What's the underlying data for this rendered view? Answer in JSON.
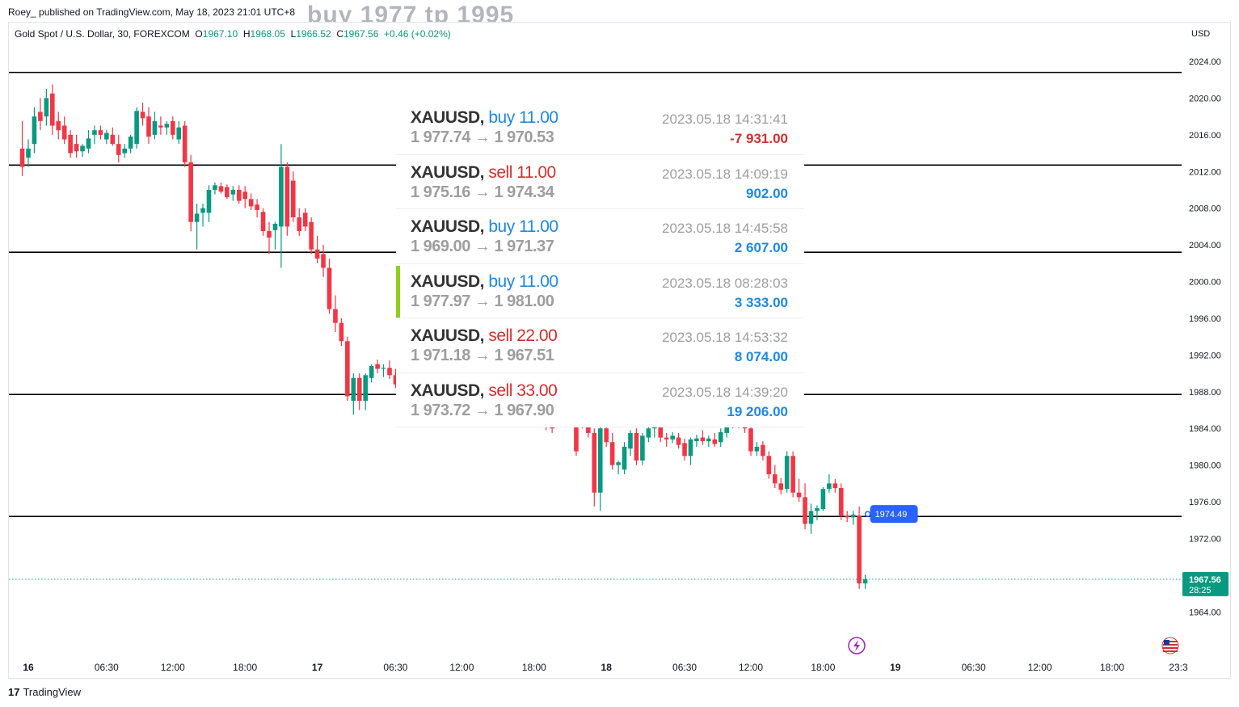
{
  "header": {
    "published": "Roey_  published on TradingView.com, May 18, 2023 21:01 UTC+8",
    "ghost_text": "buy 1977   tp 1995"
  },
  "legend": {
    "symbol": "Gold Spot / U.S. Dollar, 30, FOREXCOM",
    "o_label": "O",
    "o": "1967.10",
    "h_label": "H",
    "h": "1968.05",
    "l_label": "L",
    "l": "1966.52",
    "c_label": "C",
    "c": "1967.56",
    "change": "+0.46 (+0.02%)"
  },
  "footer": {
    "brand": "TradingView",
    "brand_mark": "17"
  },
  "trades": [
    {
      "symbol": "XAUUSD,",
      "side": "buy",
      "lots": "11.00",
      "open": "1 977.74",
      "close": "1 970.53",
      "time": "2023.05.18 14:31:41",
      "pnl": "-7 931.00",
      "highlight": false
    },
    {
      "symbol": "XAUUSD,",
      "side": "sell",
      "lots": "11.00",
      "open": "1 975.16",
      "close": "1 974.34",
      "time": "2023.05.18 14:09:19",
      "pnl": "902.00",
      "highlight": false
    },
    {
      "symbol": "XAUUSD,",
      "side": "buy",
      "lots": "11.00",
      "open": "1 969.00",
      "close": "1 971.37",
      "time": "2023.05.18 14:45:58",
      "pnl": "2 607.00",
      "highlight": false
    },
    {
      "symbol": "XAUUSD,",
      "side": "buy",
      "lots": "11.00",
      "open": "1 977.97",
      "close": "1 981.00",
      "time": "2023.05.18 08:28:03",
      "pnl": "3 333.00",
      "highlight": true
    },
    {
      "symbol": "XAUUSD,",
      "side": "sell",
      "lots": "22.00",
      "open": "1 971.18",
      "close": "1 967.51",
      "time": "2023.05.18 14:53:32",
      "pnl": "8 074.00",
      "highlight": false
    },
    {
      "symbol": "XAUUSD,",
      "side": "sell",
      "lots": "33.00",
      "open": "1 973.72",
      "close": "1 967.90",
      "time": "2023.05.18 14:39:20",
      "pnl": "19 206.00",
      "highlight": false
    }
  ],
  "chart_data": {
    "type": "candlestick",
    "currency": "USD",
    "ylim": [
      1962.0,
      2025.8
    ],
    "y_ticks": [
      "2024.00",
      "2020.00",
      "2016.00",
      "2012.00",
      "2008.00",
      "2004.00",
      "2000.00",
      "1996.00",
      "1992.00",
      "1988.00",
      "1984.00",
      "1980.00",
      "1976.00",
      "1972.00",
      "1964.00"
    ],
    "x_ticks": [
      "16",
      "06:30",
      "12:00",
      "18:00",
      "17",
      "06:30",
      "12:00",
      "18:00",
      "18",
      "06:30",
      "12:00",
      "18:00",
      "19",
      "06:30",
      "12:00",
      "18:00",
      "23:3"
    ],
    "x_tick_hours": [
      0,
      6.5,
      12,
      18,
      24,
      30.5,
      36,
      42,
      48,
      54.5,
      60,
      66,
      72,
      78.5,
      84,
      90,
      95.5
    ],
    "x_bold": [
      true,
      false,
      false,
      false,
      true,
      false,
      false,
      false,
      true,
      false,
      false,
      false,
      true,
      false,
      false,
      false,
      false
    ],
    "horizontal_levels": [
      2022.8,
      2012.7,
      2003.2,
      1987.7,
      1974.4
    ],
    "last_price": {
      "value": 1967.56,
      "label": "1967.56",
      "countdown": "28:25"
    },
    "alert_marker": {
      "value": 1974.49,
      "label": "1974.49",
      "hour": 69.3
    },
    "colors": {
      "up": "#089981",
      "down": "#f23645",
      "level": "#000000",
      "price_line": "#089981",
      "alert": "#2962ff"
    },
    "candles": [
      [
        -0.5,
        2014.5,
        2017.5,
        2011.5,
        2012.5
      ],
      [
        0.0,
        2013.5,
        2015.5,
        2012.5,
        2014.5
      ],
      [
        0.5,
        2015.0,
        2019.0,
        2014.0,
        2018.0
      ],
      [
        1.0,
        2018.5,
        2020.0,
        2016.5,
        2017.5
      ],
      [
        1.5,
        2018.0,
        2021.0,
        2017.0,
        2020.0
      ],
      [
        2.0,
        2020.5,
        2021.5,
        2016.0,
        2017.0
      ],
      [
        2.5,
        2017.5,
        2018.5,
        2015.5,
        2016.5
      ],
      [
        3.0,
        2017.0,
        2018.0,
        2015.0,
        2015.5
      ],
      [
        3.5,
        2016.0,
        2016.5,
        2013.5,
        2014.0
      ],
      [
        4.0,
        2015.0,
        2016.0,
        2013.5,
        2014.2
      ],
      [
        4.5,
        2014.2,
        2015.0,
        2013.6,
        2014.8
      ],
      [
        5.0,
        2014.5,
        2016.5,
        2014.0,
        2015.6
      ],
      [
        5.5,
        2016.0,
        2017.0,
        2015.0,
        2016.5
      ],
      [
        6.0,
        2016.5,
        2017.0,
        2015.5,
        2016.0
      ],
      [
        6.5,
        2015.5,
        2016.5,
        2015.0,
        2016.2
      ],
      [
        7.0,
        2016.0,
        2016.8,
        2014.8,
        2015.0
      ],
      [
        7.5,
        2015.0,
        2016.0,
        2013.0,
        2013.8
      ],
      [
        8.0,
        2014.0,
        2015.0,
        2013.5,
        2014.5
      ],
      [
        8.5,
        2014.5,
        2016.0,
        2014.0,
        2015.8
      ],
      [
        9.0,
        2015.0,
        2019.0,
        2014.5,
        2018.6
      ],
      [
        9.5,
        2018.5,
        2019.5,
        2017.0,
        2017.8
      ],
      [
        10.0,
        2018.0,
        2019.0,
        2015.0,
        2015.8
      ],
      [
        10.5,
        2016.0,
        2018.5,
        2015.5,
        2017.5
      ],
      [
        11.0,
        2017.0,
        2018.0,
        2016.0,
        2016.8
      ],
      [
        11.5,
        2016.8,
        2017.5,
        2016.0,
        2017.2
      ],
      [
        12.0,
        2017.5,
        2018.0,
        2015.5,
        2016.0
      ],
      [
        12.5,
        2015.5,
        2017.5,
        2015.0,
        2016.8
      ],
      [
        13.0,
        2017.0,
        2017.5,
        2012.5,
        2013.0
      ],
      [
        13.5,
        2013.0,
        2013.8,
        2005.5,
        2006.5
      ],
      [
        14.0,
        2006.5,
        2008.5,
        2003.5,
        2007.4
      ],
      [
        14.5,
        2007.5,
        2008.5,
        2006.0,
        2008.0
      ],
      [
        15.0,
        2007.5,
        2010.5,
        2006.5,
        2010.0
      ],
      [
        15.5,
        2010.0,
        2010.8,
        2009.5,
        2010.5
      ],
      [
        16.0,
        2010.4,
        2010.8,
        2009.6,
        2009.8
      ],
      [
        16.5,
        2010.3,
        2010.6,
        2009.0,
        2009.2
      ],
      [
        17.0,
        2009.5,
        2010.4,
        2008.8,
        2010.0
      ],
      [
        17.5,
        2010.0,
        2010.5,
        2008.5,
        2008.8
      ],
      [
        18.0,
        2009.8,
        2010.4,
        2008.0,
        2009.0
      ],
      [
        18.5,
        2009.0,
        2009.6,
        2007.8,
        2008.2
      ],
      [
        19.0,
        2008.4,
        2009.0,
        2007.0,
        2007.8
      ],
      [
        19.5,
        2007.6,
        2008.0,
        2005.0,
        2005.5
      ],
      [
        20.0,
        2005.5,
        2006.5,
        2003.0,
        2004.8
      ],
      [
        20.5,
        2005.6,
        2006.5,
        2003.5,
        2006.3
      ],
      [
        21.0,
        2006.0,
        2015.0,
        2001.5,
        2012.5
      ],
      [
        21.5,
        2012.5,
        2013.0,
        2005.0,
        2006.0
      ],
      [
        22.0,
        2011.0,
        2012.0,
        2006.5,
        2007.0
      ],
      [
        22.5,
        2007.0,
        2008.0,
        2005.0,
        2005.5
      ],
      [
        23.0,
        2007.5,
        2008.0,
        2005.5,
        2006.0
      ],
      [
        23.5,
        2006.5,
        2007.0,
        2003.0,
        2003.5
      ],
      [
        24.0,
        2003.5,
        2005.0,
        2002.0,
        2002.5
      ],
      [
        24.5,
        2003.0,
        2004.0,
        2000.5,
        2001.5
      ],
      [
        25.0,
        2001.5,
        2002.5,
        1996.5,
        1997.0
      ],
      [
        25.5,
        1997.0,
        1998.5,
        1994.5,
        1995.5
      ],
      [
        26.0,
        1995.5,
        1996.0,
        1993.0,
        1993.5
      ],
      [
        26.5,
        1993.5,
        1994.0,
        1987.0,
        1987.5
      ],
      [
        27.0,
        1987.0,
        1990.0,
        1985.5,
        1989.5
      ],
      [
        27.5,
        1989.5,
        1990.0,
        1986.0,
        1987.0
      ],
      [
        28.0,
        1987.0,
        1990.0,
        1986.0,
        1989.8
      ],
      [
        28.5,
        1989.5,
        1991.0,
        1989.0,
        1990.8
      ],
      [
        29.0,
        1991.0,
        1991.5,
        1990.0,
        1990.5
      ],
      [
        29.5,
        1990.5,
        1991.0,
        1989.6,
        1990.6
      ],
      [
        30.0,
        1990.6,
        1991.4,
        1989.4,
        1989.8
      ],
      [
        30.5,
        1989.8,
        1990.5,
        1988.4,
        1988.8
      ],
      [
        31.0,
        1988.6,
        1990.0,
        1988.4,
        1989.8
      ],
      [
        31.5,
        1989.5,
        1990.6,
        1989.0,
        1990.4
      ],
      [
        43.0,
        1985.5,
        1986.0,
        1983.8,
        1984.2
      ],
      [
        43.5,
        1984.5,
        1985.0,
        1983.5,
        1984.0
      ],
      [
        45.5,
        1985.5,
        1986.0,
        1981.0,
        1981.5
      ],
      [
        46.0,
        1985.8,
        1986.2,
        1984.0,
        1984.5
      ],
      [
        46.5,
        1985.0,
        1986.0,
        1983.0,
        1983.5
      ],
      [
        47.0,
        1983.5,
        1984.0,
        1975.5,
        1977.0
      ],
      [
        47.5,
        1977.0,
        1984.5,
        1975.0,
        1984.0
      ],
      [
        48.0,
        1984.0,
        1984.6,
        1982.0,
        1982.5
      ],
      [
        48.5,
        1982.5,
        1983.5,
        1979.5,
        1980.0
      ],
      [
        49.0,
        1980.0,
        1980.5,
        1979.0,
        1980.3
      ],
      [
        49.5,
        1979.5,
        1982.5,
        1979.0,
        1982.0
      ],
      [
        50.0,
        1981.8,
        1983.8,
        1981.0,
        1983.5
      ],
      [
        50.5,
        1983.5,
        1984.0,
        1980.0,
        1980.5
      ],
      [
        51.0,
        1980.5,
        1983.5,
        1980.0,
        1983.2
      ],
      [
        51.5,
        1983.0,
        1984.5,
        1982.5,
        1984.0
      ],
      [
        52.0,
        1984.0,
        1985.0,
        1983.0,
        1984.5
      ],
      [
        52.5,
        1984.5,
        1985.0,
        1982.5,
        1983.0
      ],
      [
        53.0,
        1983.0,
        1983.5,
        1982.0,
        1982.8
      ],
      [
        53.5,
        1982.8,
        1983.6,
        1982.4,
        1983.2
      ],
      [
        54.0,
        1983.0,
        1983.5,
        1981.8,
        1982.2
      ],
      [
        54.5,
        1982.4,
        1982.9,
        1980.5,
        1981.0
      ],
      [
        55.0,
        1981.0,
        1983.0,
        1980.0,
        1982.8
      ],
      [
        55.5,
        1982.6,
        1983.3,
        1982.0,
        1982.9
      ],
      [
        56.0,
        1983.0,
        1983.8,
        1982.2,
        1982.6
      ],
      [
        56.5,
        1982.6,
        1983.2,
        1982.0,
        1982.9
      ],
      [
        57.0,
        1982.8,
        1983.5,
        1982.0,
        1982.3
      ],
      [
        57.5,
        1982.5,
        1984.0,
        1982.0,
        1983.6
      ],
      [
        58.0,
        1983.5,
        1985.0,
        1983.0,
        1984.8
      ],
      [
        58.5,
        1984.6,
        1985.6,
        1984.0,
        1985.2
      ],
      [
        59.0,
        1985.0,
        1985.5,
        1984.0,
        1984.4
      ],
      [
        59.5,
        1984.5,
        1985.0,
        1983.5,
        1984.0
      ],
      [
        60.0,
        1984.0,
        1984.5,
        1981.0,
        1981.5
      ],
      [
        60.5,
        1981.5,
        1982.5,
        1981.0,
        1982.0
      ],
      [
        61.0,
        1982.2,
        1982.6,
        1980.5,
        1981.0
      ],
      [
        61.5,
        1981.0,
        1981.5,
        1978.5,
        1979.0
      ],
      [
        62.0,
        1979.0,
        1980.0,
        1977.5,
        1978.0
      ],
      [
        62.5,
        1978.0,
        1978.6,
        1976.8,
        1977.3
      ],
      [
        63.0,
        1977.4,
        1981.5,
        1977.0,
        1981.0
      ],
      [
        63.5,
        1981.0,
        1981.5,
        1976.5,
        1977.0
      ],
      [
        64.0,
        1977.0,
        1978.5,
        1976.0,
        1976.5
      ],
      [
        64.5,
        1976.5,
        1978.0,
        1973.0,
        1973.6
      ],
      [
        65.0,
        1973.6,
        1975.8,
        1972.5,
        1975.0
      ],
      [
        65.5,
        1975.0,
        1975.6,
        1974.0,
        1975.3
      ],
      [
        66.0,
        1975.2,
        1977.6,
        1975.0,
        1977.4
      ],
      [
        66.5,
        1977.4,
        1979.0,
        1977.0,
        1978.0
      ],
      [
        67.0,
        1978.0,
        1978.5,
        1977.0,
        1977.5
      ],
      [
        67.5,
        1977.5,
        1978.0,
        1974.0,
        1974.5
      ],
      [
        68.0,
        1974.5,
        1975.0,
        1973.8,
        1974.3
      ],
      [
        68.5,
        1974.3,
        1975.0,
        1973.5,
        1974.6
      ],
      [
        69.0,
        1974.5,
        1975.5,
        1966.5,
        1967.1
      ],
      [
        69.5,
        1967.1,
        1968.05,
        1966.52,
        1967.56
      ]
    ]
  }
}
